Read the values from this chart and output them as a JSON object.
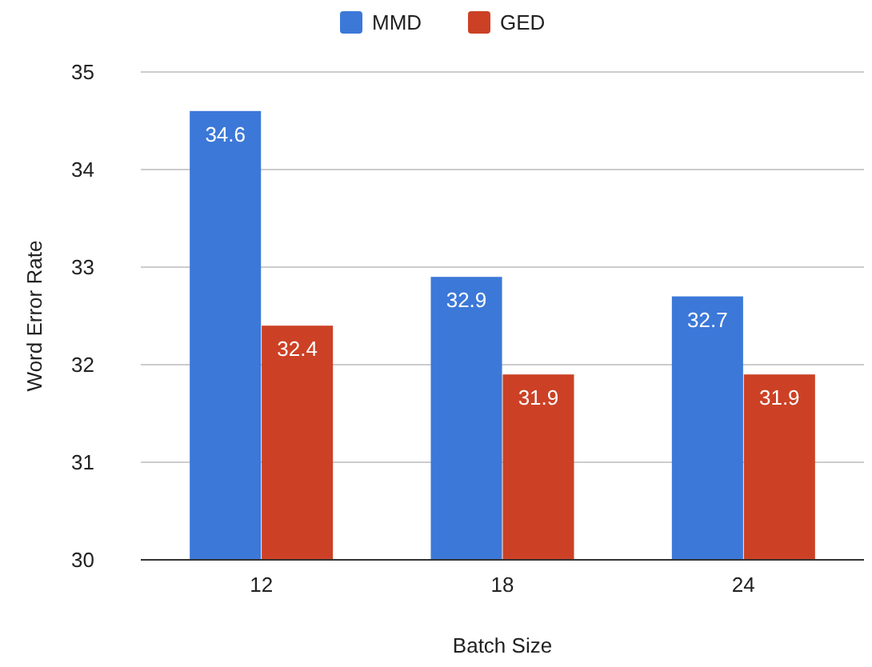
{
  "chart_data": {
    "type": "bar",
    "xlabel": "Batch Size",
    "ylabel": "Word Error Rate",
    "categories": [
      "12",
      "18",
      "24"
    ],
    "series": [
      {
        "name": "MMD",
        "color": "#3c78d8",
        "values": [
          34.6,
          32.9,
          32.7
        ]
      },
      {
        "name": "GED",
        "color": "#cc4125",
        "values": [
          32.4,
          31.9,
          31.9
        ]
      }
    ],
    "ylim": [
      30,
      35
    ],
    "yticks": [
      30,
      31,
      32,
      33,
      34,
      35
    ],
    "grid": "y",
    "legend": "top",
    "data_labels": true
  }
}
